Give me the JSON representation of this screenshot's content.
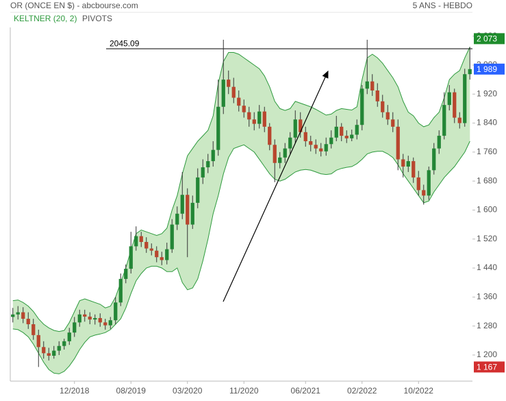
{
  "header": {
    "title": "OR (ONCE EN $) - abcbourse.com",
    "period": "5 ANS - HEBDO"
  },
  "chart_data": {
    "type": "candlestick",
    "categories": [
      null,
      null,
      null,
      null,
      null,
      null,
      null,
      null,
      null,
      null,
      null,
      null,
      "12/2018",
      null,
      null,
      null,
      null,
      null,
      null,
      null,
      null,
      null,
      null,
      "08/2019",
      null,
      null,
      null,
      null,
      null,
      null,
      null,
      null,
      null,
      null,
      "03/2020",
      null,
      null,
      null,
      null,
      null,
      null,
      null,
      null,
      null,
      null,
      "11/2020",
      null,
      null,
      null,
      null,
      null,
      null,
      null,
      null,
      null,
      null,
      null,
      "06/2021",
      null,
      null,
      null,
      null,
      null,
      null,
      null,
      null,
      null,
      null,
      "02/2022",
      null,
      null,
      null,
      null,
      null,
      null,
      null,
      null,
      null,
      null,
      "10/2022",
      null,
      null,
      null,
      null,
      null,
      null,
      null,
      null,
      null,
      null
    ],
    "open": [
      1305,
      1312,
      1318,
      1300,
      1285,
      1255,
      1222,
      1205,
      1198,
      1212,
      1225,
      1238,
      1262,
      1290,
      1312,
      1306,
      1298,
      1302,
      1290,
      1282,
      1296,
      1345,
      1410,
      1438,
      1500,
      1528,
      1512,
      1494,
      1488,
      1470,
      1462,
      1492,
      1560,
      1590,
      1642,
      1560,
      1620,
      1690,
      1718,
      1735,
      1766,
      1885,
      1960,
      1940,
      1910,
      1888,
      1870,
      1850,
      1838,
      1872,
      1830,
      1780,
      1730,
      1745,
      1770,
      1800,
      1850,
      1815,
      1790,
      1780,
      1770,
      1762,
      1782,
      1800,
      1830,
      1805,
      1798,
      1808,
      1835,
      1935,
      1955,
      1930,
      1900,
      1870,
      1850,
      1830,
      1740,
      1720,
      1735,
      1690,
      1655,
      1640,
      1710,
      1770,
      1805,
      1890,
      1925,
      1855,
      1840,
      1975
    ],
    "high": [
      1330,
      1335,
      1332,
      1318,
      1300,
      1270,
      1238,
      1220,
      1225,
      1238,
      1245,
      1275,
      1305,
      1325,
      1325,
      1318,
      1312,
      1315,
      1300,
      1305,
      1360,
      1425,
      1450,
      1540,
      1555,
      1540,
      1525,
      1508,
      1500,
      1485,
      1510,
      1575,
      1610,
      1705,
      1660,
      1640,
      1715,
      1740,
      1755,
      1790,
      1960,
      2070,
      1985,
      1965,
      1930,
      1905,
      1885,
      1870,
      1890,
      1885,
      1840,
      1795,
      1760,
      1785,
      1815,
      1875,
      1870,
      1830,
      1805,
      1795,
      1785,
      1800,
      1820,
      1860,
      1840,
      1820,
      1822,
      1850,
      1945,
      2070,
      1975,
      1950,
      1918,
      1890,
      1870,
      1850,
      1755,
      1750,
      1745,
      1708,
      1670,
      1720,
      1785,
      1820,
      1925,
      1945,
      1935,
      1870,
      1990,
      2050
    ],
    "low": [
      1290,
      1298,
      1288,
      1272,
      1242,
      1167,
      1190,
      1185,
      1190,
      1200,
      1215,
      1228,
      1250,
      1278,
      1292,
      1285,
      1284,
      1278,
      1270,
      1272,
      1285,
      1335,
      1398,
      1425,
      1488,
      1498,
      1482,
      1475,
      1456,
      1448,
      1450,
      1482,
      1545,
      1575,
      1470,
      1548,
      1605,
      1672,
      1702,
      1720,
      1750,
      1865,
      1920,
      1895,
      1872,
      1855,
      1830,
      1820,
      1825,
      1815,
      1765,
      1677,
      1715,
      1730,
      1755,
      1785,
      1800,
      1775,
      1762,
      1755,
      1748,
      1750,
      1770,
      1790,
      1790,
      1785,
      1790,
      1795,
      1820,
      1920,
      1915,
      1885,
      1855,
      1835,
      1815,
      1710,
      1690,
      1705,
      1675,
      1640,
      1615,
      1628,
      1698,
      1755,
      1795,
      1875,
      1840,
      1825,
      1830,
      1960
    ],
    "close": [
      1312,
      1318,
      1300,
      1285,
      1255,
      1222,
      1205,
      1198,
      1212,
      1225,
      1238,
      1262,
      1290,
      1312,
      1306,
      1298,
      1302,
      1290,
      1282,
      1296,
      1345,
      1410,
      1438,
      1500,
      1528,
      1512,
      1494,
      1488,
      1470,
      1462,
      1492,
      1560,
      1590,
      1642,
      1560,
      1620,
      1690,
      1718,
      1735,
      1766,
      1885,
      1960,
      1940,
      1910,
      1888,
      1870,
      1850,
      1838,
      1872,
      1830,
      1780,
      1730,
      1745,
      1770,
      1800,
      1850,
      1815,
      1790,
      1780,
      1770,
      1762,
      1782,
      1800,
      1830,
      1805,
      1798,
      1808,
      1835,
      1935,
      1955,
      1930,
      1900,
      1870,
      1850,
      1830,
      1740,
      1720,
      1735,
      1690,
      1655,
      1640,
      1710,
      1770,
      1805,
      1890,
      1925,
      1855,
      1840,
      1975,
      1989
    ],
    "up_color": "#238636",
    "down_color": "#b8462e",
    "keltner": {
      "name": "KELTNER (20, 2)",
      "color": "#2e9a3e",
      "fill": "#cbe8c4",
      "upper": [
        1350,
        1352,
        1345,
        1335,
        1320,
        1300,
        1285,
        1275,
        1268,
        1265,
        1268,
        1290,
        1320,
        1350,
        1355,
        1350,
        1345,
        1340,
        1330,
        1335,
        1360,
        1400,
        1440,
        1490,
        1535,
        1545,
        1540,
        1535,
        1530,
        1535,
        1550,
        1600,
        1640,
        1700,
        1750,
        1770,
        1790,
        1805,
        1820,
        1860,
        1950,
        2010,
        2035,
        2035,
        2030,
        2020,
        2010,
        2000,
        1990,
        1970,
        1940,
        1900,
        1880,
        1875,
        1880,
        1900,
        1895,
        1890,
        1885,
        1878,
        1870,
        1862,
        1865,
        1875,
        1880,
        1878,
        1876,
        1885,
        1960,
        2020,
        2030,
        2020,
        2005,
        1985,
        1965,
        1940,
        1900,
        1870,
        1860,
        1840,
        1830,
        1835,
        1855,
        1870,
        1910,
        1960,
        1975,
        1985,
        2020,
        2050
      ],
      "lower": [
        1272,
        1270,
        1262,
        1250,
        1230,
        1205,
        1180,
        1160,
        1150,
        1148,
        1155,
        1170,
        1190,
        1215,
        1235,
        1250,
        1255,
        1258,
        1262,
        1270,
        1285,
        1300,
        1330,
        1370,
        1405,
        1425,
        1440,
        1445,
        1445,
        1440,
        1430,
        1430,
        1440,
        1400,
        1380,
        1385,
        1410,
        1460,
        1520,
        1590,
        1640,
        1700,
        1745,
        1770,
        1775,
        1780,
        1770,
        1760,
        1740,
        1720,
        1700,
        1685,
        1680,
        1685,
        1695,
        1705,
        1710,
        1712,
        1710,
        1705,
        1700,
        1698,
        1700,
        1710,
        1715,
        1718,
        1720,
        1728,
        1740,
        1755,
        1760,
        1762,
        1762,
        1755,
        1745,
        1725,
        1700,
        1680,
        1660,
        1640,
        1620,
        1625,
        1650,
        1670,
        1690,
        1705,
        1720,
        1740,
        1760,
        1790
      ]
    },
    "pivots": {
      "name": "PIVOTS",
      "value": 2045.09
    },
    "ylim": [
      1128,
      2104
    ],
    "yticks": [
      {
        "value": 1200,
        "label": "1 200"
      },
      {
        "value": 1280,
        "label": "1 280"
      },
      {
        "value": 1360,
        "label": "1 360"
      },
      {
        "value": 1440,
        "label": "1 440"
      },
      {
        "value": 1520,
        "label": "1 520"
      },
      {
        "value": 1600,
        "label": "1 600"
      },
      {
        "value": 1680,
        "label": "1 680"
      },
      {
        "value": 1760,
        "label": "1 760"
      },
      {
        "value": 1840,
        "label": "1 840"
      },
      {
        "value": 1920,
        "label": "1 920"
      },
      {
        "value": 2000,
        "label": "2 000"
      },
      {
        "value": 2080,
        "label": "2 080"
      }
    ],
    "badges": [
      {
        "value": 2073,
        "label": "2 073",
        "color": "#1e8c2c"
      },
      {
        "value": 1989,
        "label": "1 989",
        "color": "#2962ff"
      },
      {
        "value": 1167,
        "label": "1 167",
        "color": "#d32f2f"
      }
    ]
  }
}
